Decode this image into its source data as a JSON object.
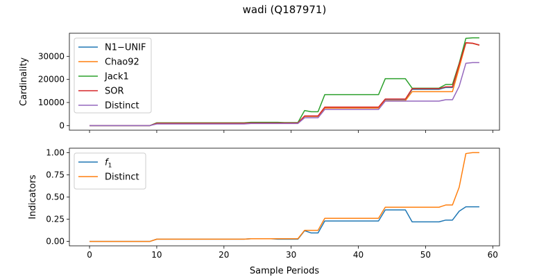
{
  "figure": {
    "title": "wadi (Q187971)"
  },
  "chart_data": [
    {
      "type": "line",
      "ylabel": "Cardinality",
      "xlabel": "",
      "xlim": [
        -3,
        61
      ],
      "ylim": [
        -2000,
        40000
      ],
      "xticks": [
        0,
        10,
        20,
        30,
        40,
        50,
        60
      ],
      "yticks": [
        0,
        10000,
        20000,
        30000
      ],
      "ytick_labels": [
        "0",
        "10000",
        "20000",
        "30000"
      ],
      "show_x_ticklabels": false,
      "grid": false,
      "legend": "upper-left",
      "x": [
        0,
        1,
        2,
        3,
        4,
        5,
        6,
        7,
        8,
        9,
        10,
        11,
        12,
        13,
        14,
        15,
        16,
        17,
        18,
        19,
        20,
        21,
        22,
        23,
        24,
        25,
        26,
        27,
        28,
        29,
        30,
        31,
        32,
        33,
        34,
        35,
        36,
        37,
        38,
        39,
        40,
        41,
        42,
        43,
        44,
        45,
        46,
        47,
        48,
        49,
        50,
        51,
        52,
        53,
        54,
        55,
        56,
        57,
        58
      ],
      "series": [
        {
          "name": "N1−UNIF",
          "color": "#1f77b4",
          "values": [
            0,
            0,
            0,
            0,
            0,
            0,
            0,
            0,
            0,
            0,
            1000,
            1000,
            1000,
            1000,
            1000,
            1000,
            1000,
            1000,
            1000,
            1000,
            1000,
            1000,
            1000,
            1000,
            1100,
            1100,
            1100,
            1100,
            1100,
            1100,
            1100,
            1100,
            4000,
            4000,
            4000,
            7800,
            7800,
            7800,
            7800,
            7800,
            7800,
            7800,
            7800,
            7800,
            11300,
            11300,
            11300,
            11300,
            15700,
            15700,
            15700,
            15700,
            15700,
            16500,
            16500,
            26000,
            35800,
            35600,
            34800
          ]
        },
        {
          "name": "Chao92",
          "color": "#ff7f0e",
          "values": [
            0,
            0,
            0,
            0,
            0,
            0,
            0,
            0,
            0,
            0,
            900,
            900,
            900,
            900,
            900,
            900,
            900,
            900,
            900,
            900,
            900,
            900,
            900,
            900,
            1000,
            1000,
            1000,
            1000,
            1000,
            1000,
            1000,
            1000,
            4000,
            4000,
            4000,
            7600,
            7600,
            7600,
            7600,
            7600,
            7600,
            7600,
            7600,
            7600,
            10800,
            10800,
            10800,
            10800,
            14700,
            14700,
            14700,
            14700,
            14700,
            14700,
            14700,
            25000,
            35800,
            35600,
            34800
          ]
        },
        {
          "name": "Jack1",
          "color": "#2ca02c",
          "values": [
            0,
            0,
            0,
            0,
            0,
            0,
            0,
            0,
            0,
            0,
            1200,
            1200,
            1200,
            1200,
            1200,
            1200,
            1200,
            1200,
            1200,
            1200,
            1200,
            1200,
            1200,
            1200,
            1400,
            1400,
            1400,
            1400,
            1400,
            1300,
            1300,
            1300,
            6500,
            6000,
            6000,
            13400,
            13400,
            13400,
            13400,
            13400,
            13400,
            13400,
            13400,
            13400,
            20300,
            20300,
            20300,
            20300,
            16200,
            16200,
            16200,
            16200,
            16200,
            17800,
            17800,
            27000,
            37800,
            38000,
            38000
          ]
        },
        {
          "name": "SOR",
          "color": "#d62728",
          "values": [
            0,
            0,
            0,
            0,
            0,
            0,
            0,
            0,
            0,
            0,
            1000,
            1000,
            1000,
            1000,
            1000,
            1000,
            1000,
            1000,
            1000,
            1000,
            1000,
            1000,
            1000,
            1000,
            1100,
            1100,
            1100,
            1100,
            1100,
            1100,
            1100,
            1100,
            4200,
            4200,
            4200,
            8000,
            8000,
            8000,
            8000,
            8000,
            8000,
            8000,
            8000,
            8000,
            11500,
            11500,
            11500,
            11500,
            16000,
            16000,
            16000,
            16000,
            16000,
            16800,
            16800,
            26500,
            35900,
            35700,
            34900
          ]
        },
        {
          "name": "Distinct",
          "color": "#9467bd",
          "values": [
            0,
            0,
            0,
            0,
            0,
            0,
            0,
            0,
            0,
            0,
            700,
            700,
            700,
            700,
            700,
            700,
            700,
            700,
            700,
            700,
            700,
            700,
            700,
            700,
            900,
            900,
            900,
            900,
            900,
            900,
            900,
            900,
            3400,
            3400,
            3400,
            7000,
            7000,
            7000,
            7000,
            7000,
            7000,
            7000,
            7000,
            7000,
            10600,
            10600,
            10600,
            10600,
            10600,
            10600,
            10600,
            10600,
            10600,
            11200,
            11200,
            17000,
            27000,
            27300,
            27300
          ]
        }
      ]
    },
    {
      "type": "line",
      "ylabel": "Indicators",
      "xlabel": "Sample Periods",
      "xlim": [
        -3,
        61
      ],
      "ylim": [
        -0.05,
        1.05
      ],
      "xticks": [
        0,
        10,
        20,
        30,
        40,
        50,
        60
      ],
      "xtick_labels": [
        "0",
        "10",
        "20",
        "30",
        "40",
        "50",
        "60"
      ],
      "yticks": [
        0,
        0.25,
        0.5,
        0.75,
        1.0
      ],
      "ytick_labels": [
        "0.00",
        "0.25",
        "0.50",
        "0.75",
        "1.00"
      ],
      "grid": false,
      "legend": "upper-left",
      "x": [
        0,
        1,
        2,
        3,
        4,
        5,
        6,
        7,
        8,
        9,
        10,
        11,
        12,
        13,
        14,
        15,
        16,
        17,
        18,
        19,
        20,
        21,
        22,
        23,
        24,
        25,
        26,
        27,
        28,
        29,
        30,
        31,
        32,
        33,
        34,
        35,
        36,
        37,
        38,
        39,
        40,
        41,
        42,
        43,
        44,
        45,
        46,
        47,
        48,
        49,
        50,
        51,
        52,
        53,
        54,
        55,
        56,
        57,
        58
      ],
      "series": [
        {
          "name": "f1",
          "legend_main": "f",
          "legend_sub": "1",
          "color": "#1f77b4",
          "values": [
            0,
            0,
            0,
            0,
            0,
            0,
            0,
            0,
            0,
            0,
            0.025,
            0.025,
            0.025,
            0.025,
            0.025,
            0.025,
            0.025,
            0.025,
            0.025,
            0.025,
            0.025,
            0.025,
            0.025,
            0.025,
            0.03,
            0.03,
            0.03,
            0.03,
            0.025,
            0.025,
            0.025,
            0.025,
            0.12,
            0.095,
            0.095,
            0.23,
            0.23,
            0.23,
            0.23,
            0.23,
            0.23,
            0.23,
            0.23,
            0.23,
            0.355,
            0.355,
            0.355,
            0.355,
            0.22,
            0.22,
            0.22,
            0.22,
            0.22,
            0.24,
            0.24,
            0.34,
            0.39,
            0.39,
            0.39
          ]
        },
        {
          "name": "Distinct",
          "color": "#ff7f0e",
          "values": [
            0,
            0,
            0,
            0,
            0,
            0,
            0,
            0,
            0,
            0,
            0.025,
            0.025,
            0.025,
            0.025,
            0.025,
            0.025,
            0.025,
            0.025,
            0.025,
            0.025,
            0.025,
            0.025,
            0.025,
            0.025,
            0.03,
            0.03,
            0.03,
            0.03,
            0.03,
            0.03,
            0.03,
            0.03,
            0.125,
            0.125,
            0.125,
            0.26,
            0.26,
            0.26,
            0.26,
            0.26,
            0.26,
            0.26,
            0.26,
            0.26,
            0.385,
            0.385,
            0.385,
            0.385,
            0.385,
            0.385,
            0.385,
            0.385,
            0.385,
            0.41,
            0.41,
            0.61,
            0.99,
            1.0,
            1.0
          ]
        }
      ]
    }
  ]
}
